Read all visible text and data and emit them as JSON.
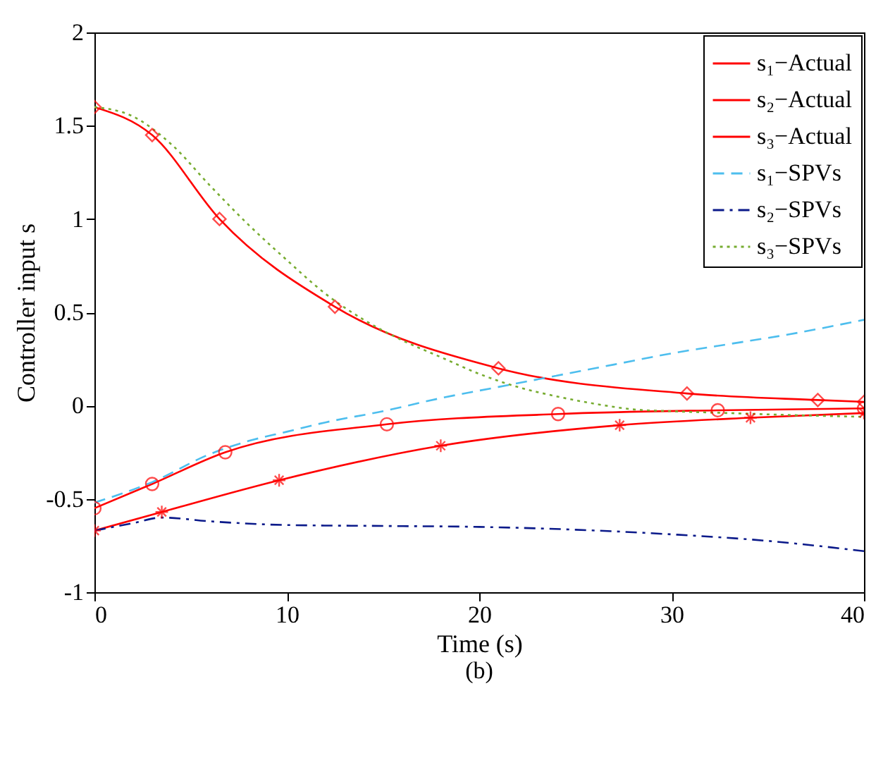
{
  "chart_data": {
    "type": "line",
    "xlabel": "Time (s)",
    "ylabel": "Controller input s",
    "annotations": [
      "(b)"
    ],
    "xlim": [
      0,
      40
    ],
    "ylim": [
      -1,
      2
    ],
    "xticks": [
      0,
      10,
      20,
      30,
      40
    ],
    "yticks": [
      -1,
      -0.5,
      0,
      0.5,
      1,
      1.5,
      2
    ],
    "grid": false,
    "legend": "top right",
    "series": [
      {
        "name": "s₁−Actual",
        "color": "#ff0000",
        "marker": "circle",
        "line_style": "solid",
        "x": [
          0,
          3,
          6.8,
          15.2,
          24.1,
          32.4,
          40
        ],
        "values": [
          -0.55,
          -0.42,
          -0.25,
          -0.1,
          -0.045,
          -0.025,
          -0.015
        ]
      },
      {
        "name": "s₂−Actual",
        "color": "#ff0000",
        "marker": "cross",
        "line_style": "solid",
        "x": [
          0,
          3.5,
          9.6,
          18,
          27.3,
          34.1,
          40
        ],
        "values": [
          -0.67,
          -0.57,
          -0.4,
          -0.215,
          -0.105,
          -0.065,
          -0.04
        ]
      },
      {
        "name": "s₃−Actual",
        "color": "#ff0000",
        "marker": "diamond",
        "line_style": "solid",
        "x": [
          0,
          3,
          6.5,
          12.5,
          21,
          30.8,
          37.6,
          40
        ],
        "values": [
          1.6,
          1.45,
          1.0,
          0.53,
          0.2,
          0.065,
          0.03,
          0.02
        ]
      },
      {
        "name": "s₁−SPVs",
        "color": "#4dbeee",
        "marker": "none",
        "line_style": "dashed",
        "x": [
          0,
          3,
          6,
          8,
          10,
          12,
          15,
          18,
          21,
          24,
          27,
          30,
          33,
          36,
          40
        ],
        "values": [
          -0.52,
          -0.41,
          -0.26,
          -0.19,
          -0.14,
          -0.09,
          -0.03,
          0.04,
          0.1,
          0.16,
          0.22,
          0.28,
          0.33,
          0.38,
          0.46
        ]
      },
      {
        "name": "s₂−SPVs",
        "color": "#0b1a8a",
        "marker": "none",
        "line_style": "dashdot",
        "x": [
          0,
          2,
          3.5,
          6,
          10,
          15,
          20,
          25,
          30,
          35,
          40
        ],
        "values": [
          -0.67,
          -0.63,
          -0.6,
          -0.62,
          -0.64,
          -0.645,
          -0.65,
          -0.665,
          -0.69,
          -0.725,
          -0.78
        ]
      },
      {
        "name": "s₃−SPVs",
        "color": "#77ac30",
        "marker": "none",
        "line_style": "dotted",
        "x": [
          0,
          2,
          4,
          6,
          8,
          10,
          12,
          14,
          16,
          18,
          20,
          22,
          24,
          26,
          28,
          30,
          33,
          36,
          40
        ],
        "values": [
          1.6,
          1.55,
          1.4,
          1.18,
          0.97,
          0.78,
          0.6,
          0.46,
          0.35,
          0.26,
          0.17,
          0.1,
          0.05,
          0.01,
          -0.02,
          -0.03,
          -0.04,
          -0.05,
          -0.06
        ]
      }
    ]
  }
}
